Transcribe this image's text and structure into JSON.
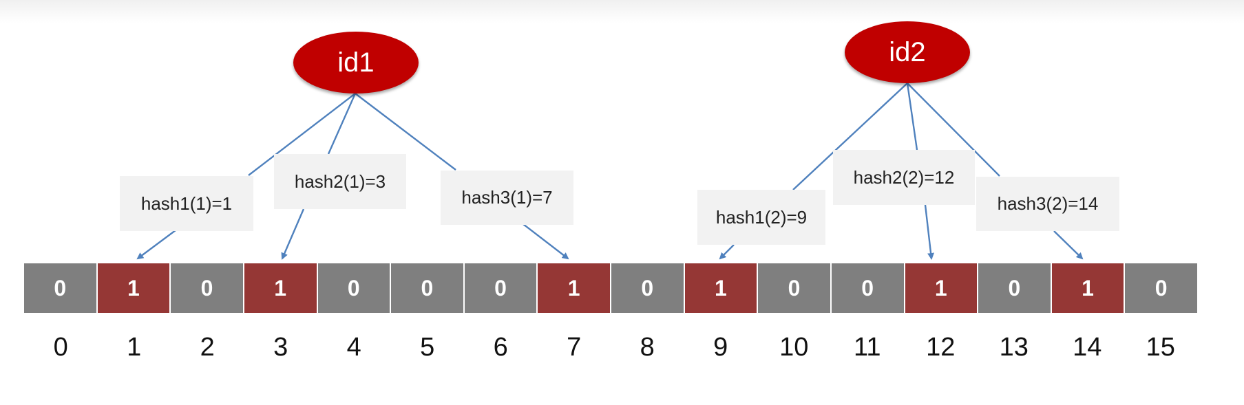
{
  "nodes": {
    "id1": "id1",
    "id2": "id2"
  },
  "hash_labels": {
    "id1_hash1": "hash1(1)=1",
    "id1_hash2": "hash2(1)=3",
    "id1_hash3": "hash3(1)=7",
    "id2_hash1": "hash1(2)=9",
    "id2_hash2": "hash2(2)=12",
    "id2_hash3": "hash3(2)=14"
  },
  "bit_array": [
    "0",
    "1",
    "0",
    "1",
    "0",
    "0",
    "0",
    "1",
    "0",
    "1",
    "0",
    "0",
    "1",
    "0",
    "1",
    "0"
  ],
  "indices": [
    "0",
    "1",
    "2",
    "3",
    "4",
    "5",
    "6",
    "7",
    "8",
    "9",
    "10",
    "11",
    "12",
    "13",
    "14",
    "15"
  ],
  "colors": {
    "node": "#c00000",
    "bit_set": "#953735",
    "bit_unset": "#7f7f7f",
    "arrow": "#4f81bd",
    "label_bg": "#f2f2f2"
  }
}
